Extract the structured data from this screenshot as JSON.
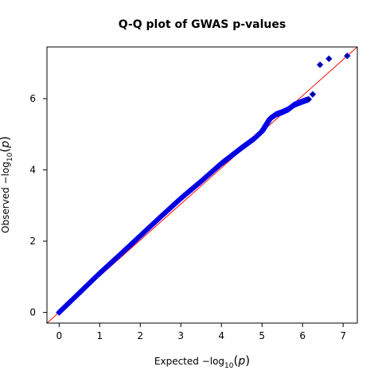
{
  "chart_data": {
    "type": "scatter",
    "title": "Q-Q plot of GWAS p-values",
    "xlabel": {
      "prefix": "Expected  −log",
      "sub": "10",
      "open": "(",
      "var": "p",
      "close": ")"
    },
    "ylabel": {
      "prefix": "Observed  −log",
      "sub": "10",
      "open": "(",
      "var": "p",
      "close": ")"
    },
    "xlim": [
      -0.3,
      7.35
    ],
    "ylim": [
      -0.3,
      7.45
    ],
    "x_ticks": [
      0,
      1,
      2,
      3,
      4,
      5,
      6,
      7
    ],
    "y_ticks": [
      0,
      2,
      4,
      6
    ],
    "grid": false,
    "reference_line": {
      "from": [
        -0.3,
        -0.3
      ],
      "to": [
        7.35,
        7.45
      ],
      "color": "#ff0000"
    },
    "marker": {
      "shape": "diamond",
      "fill": "#00008b",
      "edge": "#0000ff"
    },
    "points_curve": [
      [
        0.0,
        0.0
      ],
      [
        0.5,
        0.55
      ],
      [
        1.0,
        1.1
      ],
      [
        1.5,
        1.62
      ],
      [
        2.0,
        2.15
      ],
      [
        2.5,
        2.68
      ],
      [
        3.0,
        3.2
      ],
      [
        3.5,
        3.68
      ],
      [
        4.0,
        4.18
      ],
      [
        4.5,
        4.62
      ],
      [
        4.8,
        4.87
      ],
      [
        5.0,
        5.08
      ],
      [
        5.2,
        5.44
      ],
      [
        5.35,
        5.56
      ],
      [
        5.5,
        5.62
      ],
      [
        5.65,
        5.7
      ],
      [
        5.8,
        5.83
      ],
      [
        6.0,
        5.92
      ],
      [
        6.15,
        5.98
      ]
    ],
    "points_extra": [
      {
        "x": 6.25,
        "y": 6.12
      },
      {
        "x": 6.43,
        "y": 6.95
      },
      {
        "x": 6.65,
        "y": 7.12
      },
      {
        "x": 7.1,
        "y": 7.2
      }
    ]
  }
}
